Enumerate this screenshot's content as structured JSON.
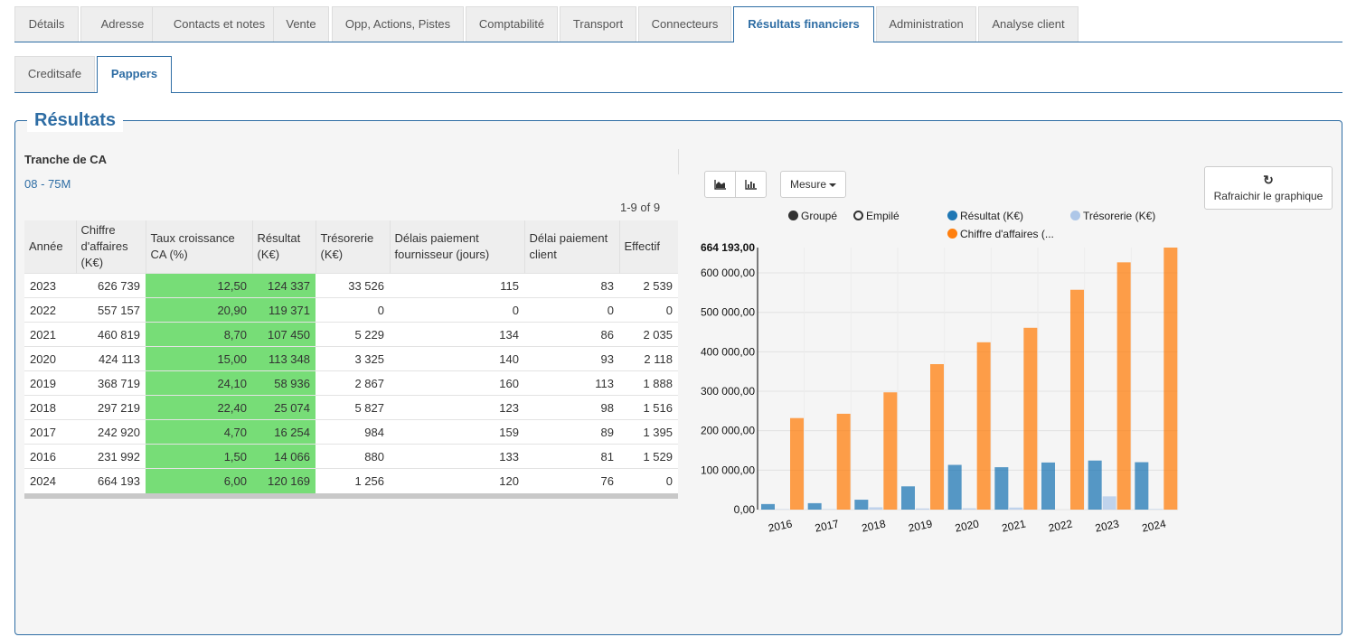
{
  "main_tabs": [
    {
      "label": "Détails"
    },
    {
      "label": "Adresse"
    },
    {
      "label": "Contacts et notes"
    },
    {
      "label": "Vente"
    },
    {
      "label": "Opp, Actions, Pistes"
    },
    {
      "label": "Comptabilité"
    },
    {
      "label": "Transport"
    },
    {
      "label": "Connecteurs"
    },
    {
      "label": "Résultats financiers",
      "active": true
    },
    {
      "label": "Administration"
    },
    {
      "label": "Analyse client"
    }
  ],
  "sub_tabs": [
    {
      "label": "Creditsafe"
    },
    {
      "label": "Pappers",
      "active": true
    }
  ],
  "section": {
    "title": "Résultats"
  },
  "tranche": {
    "label": "Tranche de CA",
    "value": "08 - 75M"
  },
  "pager": "1-9 of 9",
  "table": {
    "headers": [
      "Année",
      "Chiffre d'affaires (K€)",
      "Taux croissance CA (%)",
      "Résultat (K€)",
      "Trésorerie (K€)",
      "Délais paiement fournisseur (jours)",
      "Délai paiement client",
      "Effectif"
    ],
    "rows": [
      [
        "2023",
        "626 739",
        "12,50",
        "124 337",
        "33 526",
        "115",
        "83",
        "2 539"
      ],
      [
        "2022",
        "557 157",
        "20,90",
        "119 371",
        "0",
        "0",
        "0",
        "0"
      ],
      [
        "2021",
        "460 819",
        "8,70",
        "107 450",
        "5 229",
        "134",
        "86",
        "2 035"
      ],
      [
        "2020",
        "424 113",
        "15,00",
        "113 348",
        "3 325",
        "140",
        "93",
        "2 118"
      ],
      [
        "2019",
        "368 719",
        "24,10",
        "58 936",
        "2 867",
        "160",
        "113",
        "1 888"
      ],
      [
        "2018",
        "297 219",
        "22,40",
        "25 074",
        "5 827",
        "123",
        "98",
        "1 516"
      ],
      [
        "2017",
        "242 920",
        "4,70",
        "16 254",
        "984",
        "159",
        "89",
        "1 395"
      ],
      [
        "2016",
        "231 992",
        "1,50",
        "14 066",
        "880",
        "133",
        "81",
        "1 529"
      ],
      [
        "2024",
        "664 193",
        "6,00",
        "120 169",
        "1 256",
        "120",
        "76",
        "0"
      ]
    ]
  },
  "controls": {
    "area_chart_icon": "area-chart-icon",
    "bar_chart_icon": "bar-chart-icon",
    "mesure_label": "Mesure",
    "refresh_icon": "refresh-icon",
    "refresh_label": "Rafraichir le graphique"
  },
  "colors": {
    "accent": "#2e6da4",
    "green": "#77dd77",
    "resultat": "#1f77b4",
    "tresorerie": "#aec7e8",
    "ca": "#ff7f0e"
  },
  "chart_data": {
    "type": "bar",
    "categories": [
      "2016",
      "2017",
      "2018",
      "2019",
      "2020",
      "2021",
      "2022",
      "2023",
      "2024"
    ],
    "series": [
      {
        "name": "Résultat (K€)",
        "values": [
          14066,
          16254,
          25074,
          58936,
          113348,
          107450,
          119371,
          124337,
          120169
        ]
      },
      {
        "name": "Trésorerie (K€)",
        "values": [
          880,
          984,
          5827,
          2867,
          3325,
          5229,
          0,
          33526,
          1256
        ]
      },
      {
        "name": "Chiffre d'affaires (...",
        "values": [
          231992,
          242920,
          297219,
          368719,
          424113,
          460819,
          557157,
          626739,
          664193
        ]
      }
    ],
    "mode_options": [
      "Groupé",
      "Empilé"
    ],
    "mode_selected": "Groupé",
    "yticks": [
      "0,00",
      "100 000,00",
      "200 000,00",
      "300 000,00",
      "400 000,00",
      "500 000,00",
      "600 000,00"
    ],
    "ymax_label": "664 193,00",
    "ylim": [
      0,
      664193
    ],
    "grid": true
  }
}
